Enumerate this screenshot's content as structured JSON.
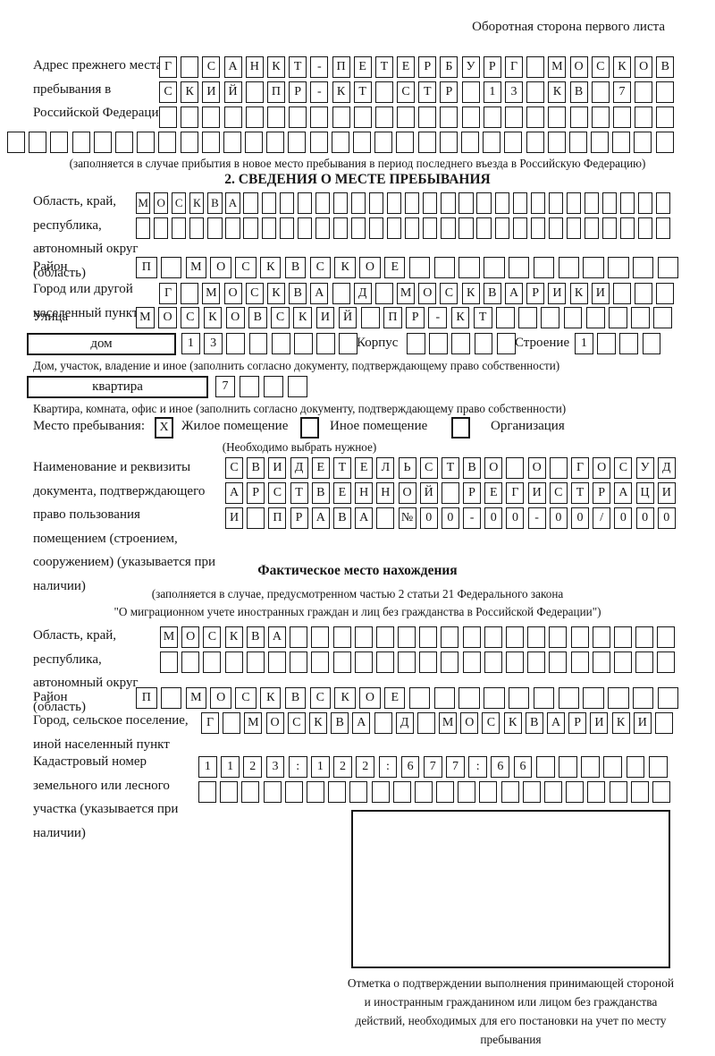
{
  "page": {
    "back_label": "Оборотная сторона первого листа",
    "ink_color": "#161616",
    "paper_color": "#ffffff"
  },
  "prev_address": {
    "label": "Адрес прежнего места пребывания в Российской Федерации",
    "row1": {
      "text": "Г_САНКТ-ПЕТЕРБУРГ_МОСКОВ",
      "len": 24
    },
    "row2": {
      "text": "СКИЙ_ПР-КТ_СТР_13_КВ_7",
      "len": 24
    },
    "row3": {
      "text": "",
      "len": 24
    },
    "row4": {
      "text": "",
      "len": 31
    },
    "note": "(заполняется в случае прибытия в новое место пребывания в период последнего въезда в Российскую Федерацию)"
  },
  "section2": {
    "title": "2. СВЕДЕНИЯ О МЕСТЕ ПРЕБЫВАНИЯ",
    "oblast": {
      "label": "Область, край, республика, автономный округ (область)",
      "row1": {
        "text": "МОСКВА",
        "len": 30
      },
      "row2": {
        "text": "",
        "len": 30
      }
    },
    "rayon": {
      "label": "Район",
      "row": {
        "text": "П_МОСКВСКОЕ",
        "len": 22
      }
    },
    "gorod": {
      "label": "Город или другой населенный пункт",
      "row": {
        "text": "Г_МОСКВА_Д_МОСКВАРИКИ",
        "len": 24
      }
    },
    "ulitsa": {
      "label": "Улица",
      "row": {
        "text": "МОСКОВСКИЙ_ПР-КТ",
        "len": 24
      }
    },
    "dom": {
      "box_label": "дом",
      "cells": {
        "text": "13",
        "len": 8
      },
      "korpus_label": "Корпус",
      "korpus_cells": {
        "text": "",
        "len": 5
      },
      "stroenie_label": "Строение",
      "stroenie_cells": {
        "text": "1",
        "len": 4
      },
      "note": "Дом, участок, владение и иное (заполнить согласно документу, подтверждающему право собственности)"
    },
    "kvartira": {
      "box_label": "квартира",
      "cells": {
        "text": "7",
        "len": 4
      },
      "note": "Квартира, комната, офис и иное (заполнить согласно документу, подтверждающему право собственности)"
    },
    "mesto": {
      "label": "Место пребывания:",
      "options": [
        {
          "label": "Жилое помещение",
          "mark": "X"
        },
        {
          "label": "Иное помещение",
          "mark": ""
        },
        {
          "label": "Организация",
          "mark": ""
        }
      ],
      "note": "(Необходимо выбрать нужное)"
    },
    "doc": {
      "label": "Наименование и реквизиты документа, подтверждающего право пользования помещением (строением, сооружением) (указывается при наличии)",
      "row1": {
        "text": "СВИДЕТЕЛЬСТВО_О_ГОСУД",
        "len": 21
      },
      "row2": {
        "text": "АРСТВЕННОЙ_РЕГИСТРАЦИ",
        "len": 21
      },
      "row3": {
        "text": "И_ПРАВА_№00-00-00/000",
        "len": 21
      }
    }
  },
  "fact": {
    "title": "Фактическое место нахождения",
    "note_line1": "(заполняется в случае, предусмотренном частью 2 статьи 21 Федерального закона",
    "note_line2": "\"О миграционном учете иностранных граждан и лиц без гражданства в Российской Федерации\")",
    "oblast": {
      "label": "Область, край, республика, автономный округ (область)",
      "row1": {
        "text": "МОСКВА",
        "len": 24
      },
      "row2": {
        "text": "",
        "len": 24
      }
    },
    "rayon": {
      "label": "Район",
      "row": {
        "text": "П_МОСКВСКОЕ",
        "len": 22
      }
    },
    "gorod": {
      "label": "Город, сельское поселение, иной населенный пункт",
      "row": {
        "text": "Г_МОСКВА_Д_МОСКВАРИКИ",
        "len": 22
      }
    },
    "kadastr": {
      "label": "Кадастровый номер земельного или лесного участка (указывается при наличии)",
      "row1": {
        "text": "1123:122:677:66",
        "len": 21
      },
      "row2": {
        "text": "",
        "len": 22
      }
    }
  },
  "stamp": {
    "caption": "Отметка о подтверждении выполнения принимающей стороной и иностранным гражданином или лицом без гражданства действий, необходимых для его постановки на учет по месту пребывания"
  }
}
